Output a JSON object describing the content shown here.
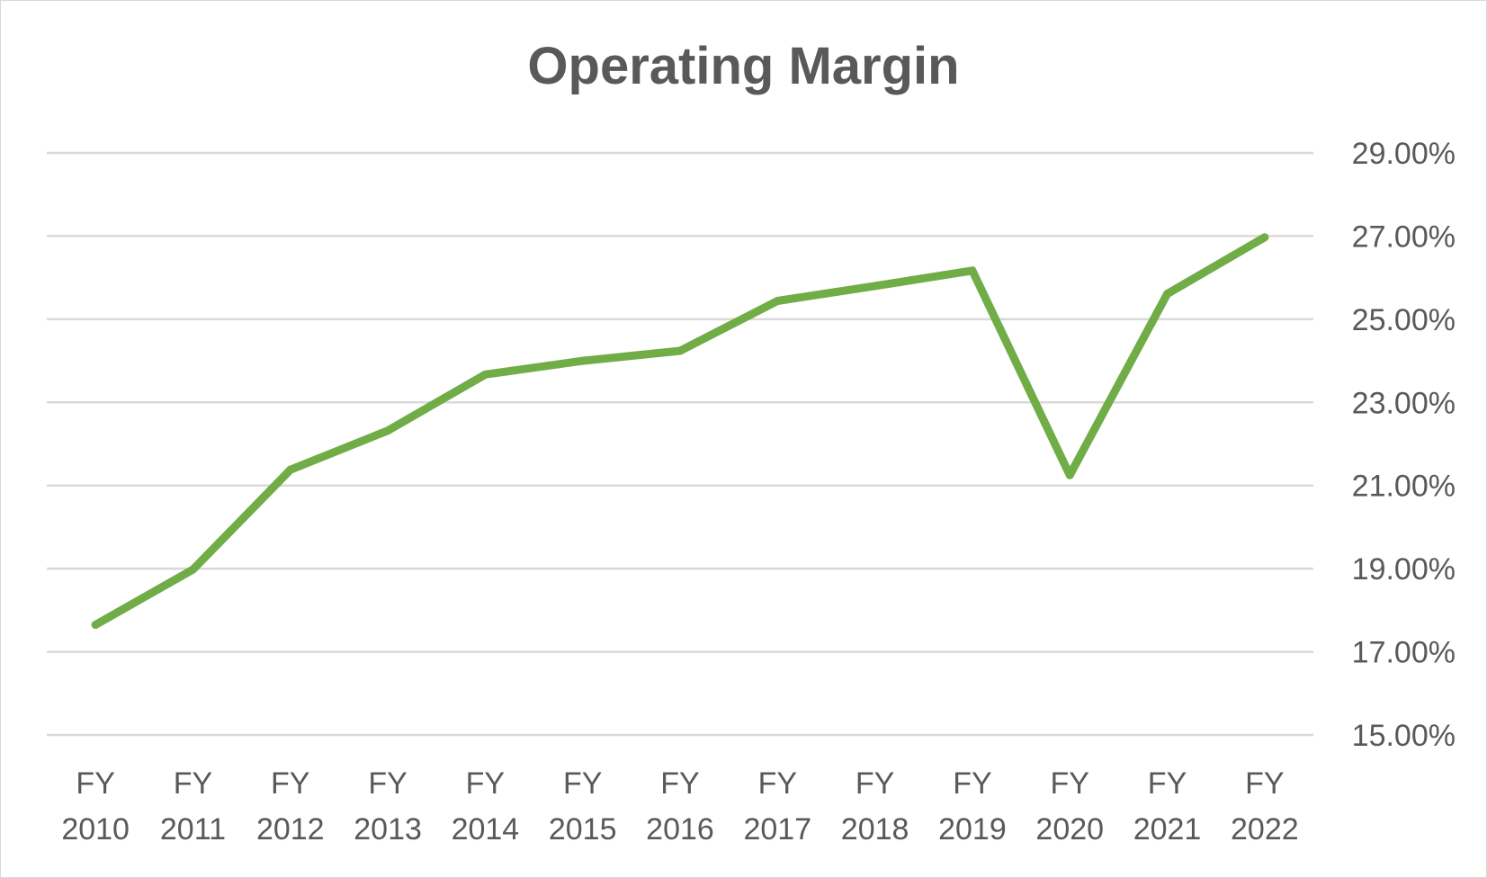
{
  "chart_data": {
    "type": "line",
    "title": "Operating Margin",
    "xlabel": "",
    "ylabel": "",
    "categories": [
      [
        "FY",
        "2010"
      ],
      [
        "FY",
        "2011"
      ],
      [
        "FY",
        "2012"
      ],
      [
        "FY",
        "2013"
      ],
      [
        "FY",
        "2014"
      ],
      [
        "FY",
        "2015"
      ],
      [
        "FY",
        "2016"
      ],
      [
        "FY",
        "2017"
      ],
      [
        "FY",
        "2018"
      ],
      [
        "FY",
        "2019"
      ],
      [
        "FY",
        "2020"
      ],
      [
        "FY",
        "2021"
      ],
      [
        "FY",
        "2022"
      ]
    ],
    "series": [
      {
        "values": [
          17.65,
          18.98,
          21.38,
          22.32,
          23.67,
          24.0,
          24.24,
          25.44,
          25.8,
          26.17,
          21.25,
          25.61,
          26.97
        ],
        "color": "#70ad47"
      }
    ],
    "ylim": [
      15,
      29
    ],
    "y_ticks": [
      15,
      17,
      19,
      21,
      23,
      25,
      27,
      29
    ],
    "y_tick_labels": [
      "15.00%",
      "17.00%",
      "19.00%",
      "21.00%",
      "23.00%",
      "25.00%",
      "27.00%",
      "29.00%"
    ],
    "y_axis_side": "right",
    "grid": true,
    "grid_color": "#d9d9d9",
    "text_color": "#595959",
    "legend": "none"
  }
}
